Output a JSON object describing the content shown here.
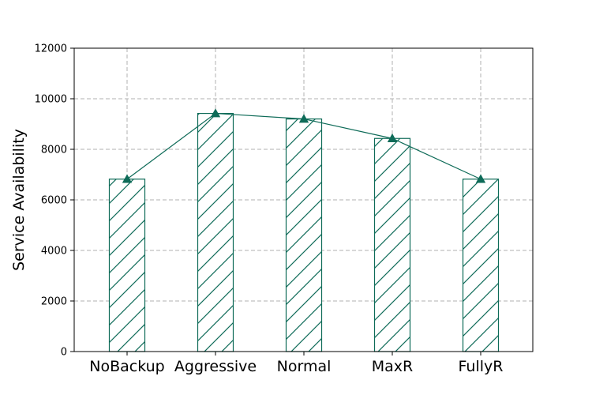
{
  "chart_data": {
    "type": "bar",
    "categories": [
      "NoBackup",
      "Aggressive",
      "Normal",
      "MaxR",
      "FullyR"
    ],
    "values": [
      6820,
      9420,
      9200,
      8430,
      6820
    ],
    "line_overlay": [
      6820,
      9420,
      9200,
      8430,
      6820
    ],
    "title": "",
    "xlabel": "",
    "ylabel": "Service Availability",
    "ylim": [
      0,
      12000
    ],
    "yticks": [
      0,
      2000,
      4000,
      6000,
      8000,
      10000,
      12000
    ],
    "grid": true,
    "bar_hatch": "diagonal",
    "colors": {
      "series": "#0e6b58",
      "grid": "#b0b0b0",
      "axis": "#000000"
    }
  }
}
